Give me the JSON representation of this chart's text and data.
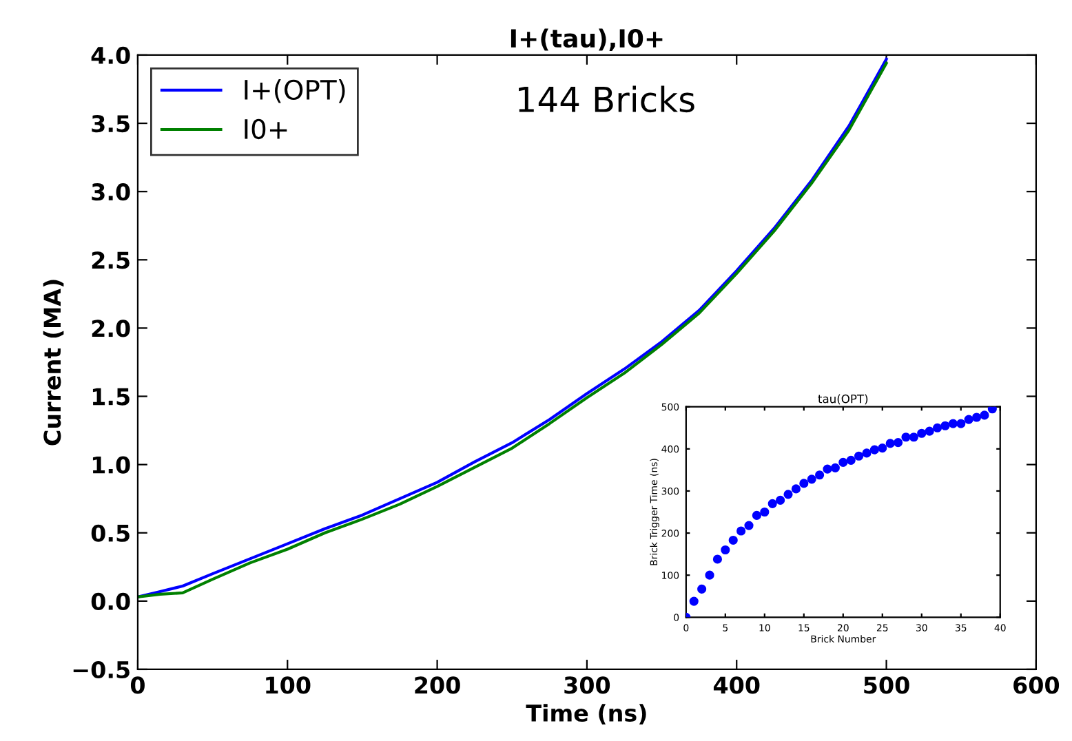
{
  "chart_data": [
    {
      "type": "line",
      "title": "I+(tau),I0+",
      "xlabel": "Time (ns)",
      "ylabel": "Current (MA)",
      "xlim": [
        0,
        600
      ],
      "ylim": [
        -0.5,
        4.0
      ],
      "xticks": [
        0,
        100,
        200,
        300,
        400,
        500,
        600
      ],
      "yticks": [
        {
          "value": -0.5,
          "label": "−0.5"
        },
        {
          "value": 0.0,
          "label": "0.0"
        },
        {
          "value": 0.5,
          "label": "0.5"
        },
        {
          "value": 1.0,
          "label": "1.0"
        },
        {
          "value": 1.5,
          "label": "1.5"
        },
        {
          "value": 2.0,
          "label": "2.0"
        },
        {
          "value": 2.5,
          "label": "2.5"
        },
        {
          "value": 3.0,
          "label": "3.0"
        },
        {
          "value": 3.5,
          "label": "3.5"
        },
        {
          "value": 4.0,
          "label": "4.0"
        }
      ],
      "grid": false,
      "legend": "top left",
      "annotations": [
        "144 Bricks"
      ],
      "x": [
        0,
        15,
        30,
        50,
        75,
        100,
        125,
        150,
        175,
        200,
        225,
        250,
        275,
        300,
        325,
        350,
        375,
        400,
        425,
        450,
        475,
        500
      ],
      "series": [
        {
          "name": "I+(OPT)",
          "color": "#0000ff",
          "values": [
            0.03,
            0.07,
            0.11,
            0.2,
            0.31,
            0.42,
            0.53,
            0.63,
            0.75,
            0.87,
            1.02,
            1.16,
            1.33,
            1.52,
            1.7,
            1.9,
            2.13,
            2.42,
            2.73,
            3.08,
            3.48,
            3.97
          ]
        },
        {
          "name": "I0+",
          "color": "#008000",
          "values": [
            0.03,
            0.05,
            0.06,
            0.16,
            0.28,
            0.38,
            0.5,
            0.6,
            0.71,
            0.84,
            0.98,
            1.12,
            1.3,
            1.49,
            1.67,
            1.88,
            2.11,
            2.4,
            2.71,
            3.06,
            3.45,
            3.94
          ]
        }
      ]
    },
    {
      "type": "scatter",
      "title": "tau(OPT)",
      "xlabel": "Brick Number",
      "ylabel": "Brick Trigger Time (ns)",
      "xlim": [
        0,
        40
      ],
      "ylim": [
        0,
        500
      ],
      "xticks": [
        0,
        5,
        10,
        15,
        20,
        25,
        30,
        35,
        40
      ],
      "yticks": [
        0,
        100,
        200,
        300,
        400,
        500
      ],
      "grid": false,
      "marker": "circle",
      "x": [
        0,
        1,
        2,
        3,
        4,
        5,
        6,
        7,
        8,
        9,
        10,
        11,
        12,
        13,
        14,
        15,
        16,
        17,
        18,
        19,
        20,
        21,
        22,
        23,
        24,
        25,
        26,
        27,
        28,
        29,
        30,
        31,
        32,
        33,
        34,
        35,
        36,
        37,
        38,
        39
      ],
      "series": [
        {
          "color": "#0000ff",
          "values": [
            0,
            38,
            67,
            100,
            138,
            160,
            183,
            205,
            218,
            242,
            250,
            270,
            278,
            292,
            305,
            318,
            328,
            338,
            352,
            355,
            368,
            373,
            383,
            390,
            398,
            402,
            413,
            415,
            428,
            428,
            437,
            442,
            450,
            455,
            460,
            460,
            470,
            475,
            480,
            495
          ]
        }
      ]
    }
  ]
}
